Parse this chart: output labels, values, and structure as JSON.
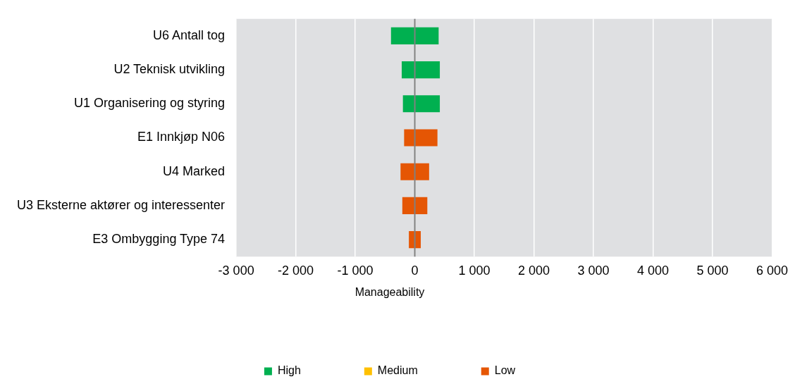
{
  "chart_data": {
    "type": "bar",
    "orientation": "horizontal",
    "legend_title": "Manageability",
    "legend": "bottom",
    "grid": "x",
    "categories": [
      "U6 Antall tog",
      "U2 Teknisk utvikling",
      "U1 Organisering og styring",
      "E1 Innkjøp N06",
      "U4 Marked",
      "U3 Eksterne aktører og interessenter",
      "E3 Ombygging Type 74"
    ],
    "series": [
      {
        "name": "High",
        "color": "#00b050",
        "base": [
          -400,
          -220,
          -200,
          null,
          null,
          null,
          null
        ],
        "values": [
          800,
          640,
          620,
          null,
          null,
          null,
          null
        ]
      },
      {
        "name": "Medium",
        "color": "#ffc000",
        "base": [
          null,
          null,
          null,
          null,
          null,
          null,
          null
        ],
        "values": [
          null,
          null,
          null,
          null,
          null,
          null,
          null
        ]
      },
      {
        "name": "Low",
        "color": "#e55604",
        "base": [
          null,
          null,
          null,
          -180,
          -240,
          -210,
          -100
        ],
        "values": [
          null,
          null,
          null,
          560,
          480,
          420,
          200
        ]
      }
    ],
    "xlim": [
      -3000,
      6000
    ],
    "xticks": [
      {
        "value": -3000,
        "label": "-3 000"
      },
      {
        "value": -2000,
        "label": "-2 000"
      },
      {
        "value": -1000,
        "label": "-1 000"
      },
      0,
      {
        "value": 1000,
        "label": "1 000"
      },
      {
        "value": 2000,
        "label": "2 000"
      },
      {
        "value": 3000,
        "label": "3 000"
      },
      {
        "value": 4000,
        "label": "4 000"
      },
      {
        "value": 5000,
        "label": "5 000"
      },
      {
        "value": 6000,
        "label": "6 000"
      }
    ],
    "ref_lines": [
      {
        "axis": "x",
        "value": 0,
        "color": "#808080"
      }
    ]
  }
}
